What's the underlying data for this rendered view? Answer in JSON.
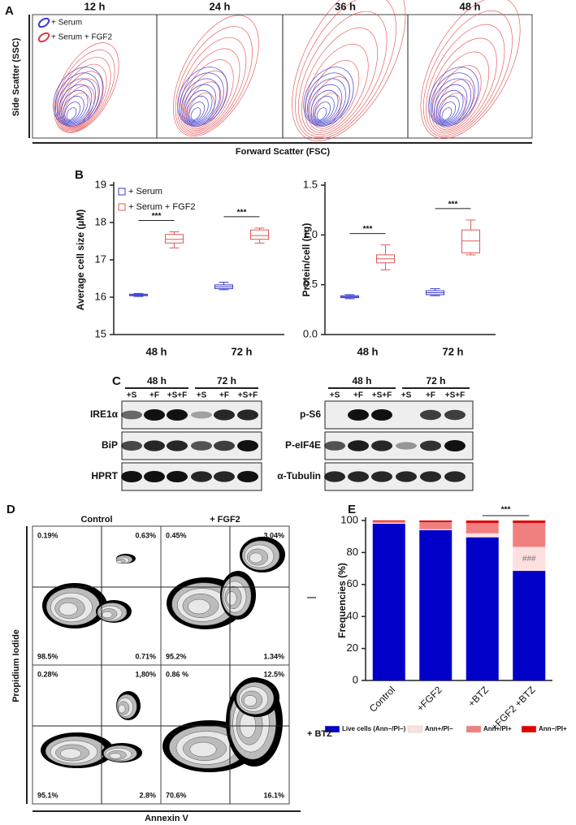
{
  "panel_labels": [
    "A",
    "B",
    "C",
    "D",
    "E"
  ],
  "flow_a": {
    "columns": [
      "12 h",
      "24 h",
      "36 h",
      "48 h"
    ],
    "legend": [
      {
        "name": "+ Serum",
        "color": "#3a3ad0"
      },
      {
        "name": "+ Serum + FGF2",
        "color": "#e03a3a"
      }
    ],
    "y_label": "Side Scatter (SSC)",
    "x_label": "Forward Scatter (FSC)"
  },
  "chart_data": [
    {
      "type": "box",
      "y_label": "Average cell size (µM)",
      "categories": [
        "48 h",
        "72 h"
      ],
      "ylim": [
        15,
        19
      ],
      "yticks": [
        15,
        16,
        17,
        18,
        19
      ],
      "legend": "top-left",
      "annotations": [
        "***",
        "***"
      ],
      "series": [
        {
          "name": "+ Serum",
          "color": "#3a3ad0",
          "values": [
            {
              "min": 16.02,
              "q1": 16.04,
              "median": 16.06,
              "q3": 16.08,
              "max": 16.1
            },
            {
              "min": 16.2,
              "q1": 16.23,
              "median": 16.28,
              "q3": 16.33,
              "max": 16.4
            }
          ]
        },
        {
          "name": "+ Serum + FGF2",
          "color": "#e05a5a",
          "values": [
            {
              "min": 17.32,
              "q1": 17.45,
              "median": 17.55,
              "q3": 17.68,
              "max": 17.75
            },
            {
              "min": 17.45,
              "q1": 17.55,
              "median": 17.65,
              "q3": 17.8,
              "max": 17.85
            }
          ]
        }
      ]
    },
    {
      "type": "box",
      "y_label": "Protein/cell (ng)",
      "categories": [
        "48 h",
        "72 h"
      ],
      "ylim": [
        0,
        1.5
      ],
      "yticks": [
        {
          "value": 0,
          "label": "0.0"
        },
        {
          "value": 0.5,
          "label": "0.5"
        },
        {
          "value": 1,
          "label": "1.0"
        },
        {
          "value": 1.5,
          "label": "1.5"
        }
      ],
      "annotations": [
        "***",
        "***"
      ],
      "series": [
        {
          "color": "#3a3ad0",
          "values": [
            {
              "min": 0.36,
              "q1": 0.37,
              "median": 0.38,
              "q3": 0.39,
              "max": 0.4
            },
            {
              "min": 0.39,
              "q1": 0.4,
              "median": 0.42,
              "q3": 0.44,
              "max": 0.46
            }
          ]
        },
        {
          "color": "#e05a5a",
          "values": [
            {
              "min": 0.65,
              "q1": 0.72,
              "median": 0.76,
              "q3": 0.8,
              "max": 0.9
            },
            {
              "min": 0.8,
              "q1": 0.82,
              "median": 0.94,
              "q3": 1.05,
              "max": 1.15
            }
          ]
        }
      ]
    },
    {
      "type": "stacked-bar",
      "y_label": "Frequencies (%)",
      "categories": [
        "Control",
        "+FGF2",
        "+BTZ",
        "+FGF2 +BTZ"
      ],
      "ylim": [
        0,
        100
      ],
      "yticks": [
        0,
        20,
        40,
        60,
        80,
        100
      ],
      "legend": "bottom",
      "annotations": [
        "***",
        "###"
      ],
      "series": [
        {
          "name": "Live cells (Ann−/PI−)",
          "color": "#0000c8",
          "values": [
            98,
            94,
            89.5,
            68.5
          ]
        },
        {
          "name": "Ann+/PI−",
          "color": "#fde0e0",
          "values": [
            0.5,
            0.5,
            2.5,
            15
          ]
        },
        {
          "name": "Ann+/PI+",
          "color": "#f08080",
          "values": [
            1,
            4.5,
            6.5,
            15
          ]
        },
        {
          "name": "Ann−/PI+",
          "color": "#e00000",
          "values": [
            0.5,
            1,
            1.5,
            1.5
          ]
        }
      ]
    }
  ],
  "blots": [
    {
      "groups": [
        "48 h",
        "72 h"
      ],
      "lanes": [
        "+S",
        "+F",
        "+S+F",
        "+S",
        "+F",
        "+S+F"
      ],
      "rows": [
        "IRE1α",
        "BiP",
        "HPRT"
      ]
    },
    {
      "groups": [
        "48 h",
        "72 h"
      ],
      "lanes": [
        "+S",
        "+F",
        "+S+F",
        "+S",
        "+F",
        "+S+F"
      ],
      "rows": [
        "p-S6",
        "P-eIF4E",
        "α-Tubulin"
      ]
    }
  ],
  "flow_d": {
    "columns": [
      "Control",
      "+ FGF2"
    ],
    "rows": [
      "—",
      "+ BTZ"
    ],
    "plots": [
      [
        "0.19%",
        "0.63%",
        "98.5%",
        "0.71%"
      ],
      [
        "0.45%",
        "3.04%",
        "95.2%",
        "1.34%"
      ],
      [
        "0.28%",
        "1,80%",
        "95.1%",
        "2.8%"
      ],
      [
        "0.86 %",
        "12.5%",
        "70.6%",
        "16.1%"
      ]
    ],
    "y_label": "Propidium Iodide",
    "x_label": "Annexin V"
  }
}
